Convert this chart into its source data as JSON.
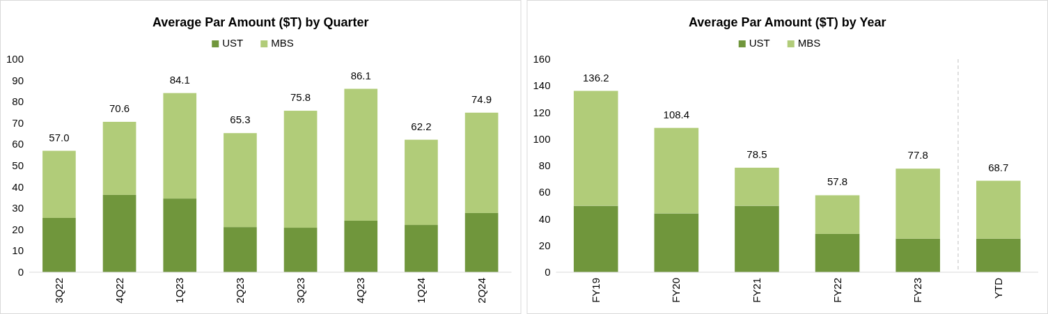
{
  "chart_data": [
    {
      "type": "bar",
      "stacked": true,
      "title": "Average Par Amount ($T) by Quarter",
      "categories": [
        "3Q22",
        "4Q22",
        "1Q23",
        "2Q23",
        "3Q23",
        "4Q23",
        "1Q24",
        "2Q24"
      ],
      "series": [
        {
          "name": "UST",
          "color": "#70963c",
          "values": [
            25.5,
            36.3,
            34.6,
            21.2,
            20.9,
            24.2,
            22.2,
            27.8
          ]
        },
        {
          "name": "MBS",
          "color": "#b1cc79",
          "values": [
            31.5,
            34.3,
            49.5,
            44.1,
            54.9,
            61.9,
            40.0,
            47.1
          ]
        }
      ],
      "totals": [
        "57.0",
        "70.6",
        "84.1",
        "65.3",
        "75.8",
        "86.1",
        "62.2",
        "74.9"
      ],
      "ylim": [
        0,
        100
      ],
      "yticks": [
        0,
        10,
        20,
        30,
        40,
        50,
        60,
        70,
        80,
        90,
        100
      ],
      "grid": false,
      "legend": "top"
    },
    {
      "type": "bar",
      "stacked": true,
      "title": "Average Par Amount ($T) by Year",
      "categories": [
        "FY19",
        "FY20",
        "FY21",
        "FY22",
        "FY23",
        "YTD"
      ],
      "series": [
        {
          "name": "UST",
          "color": "#70963c",
          "values": [
            49.9,
            44.2,
            49.9,
            28.8,
            25.2,
            25.2
          ]
        },
        {
          "name": "MBS",
          "color": "#b1cc79",
          "values": [
            86.3,
            64.2,
            28.6,
            29.0,
            52.6,
            43.5
          ]
        }
      ],
      "totals": [
        "136.2",
        "108.4",
        "78.5",
        "57.8",
        "77.8",
        "68.7"
      ],
      "ylim": [
        0,
        160
      ],
      "yticks": [
        0,
        20,
        40,
        60,
        80,
        100,
        120,
        140,
        160
      ],
      "grid": false,
      "legend": "top"
    }
  ]
}
